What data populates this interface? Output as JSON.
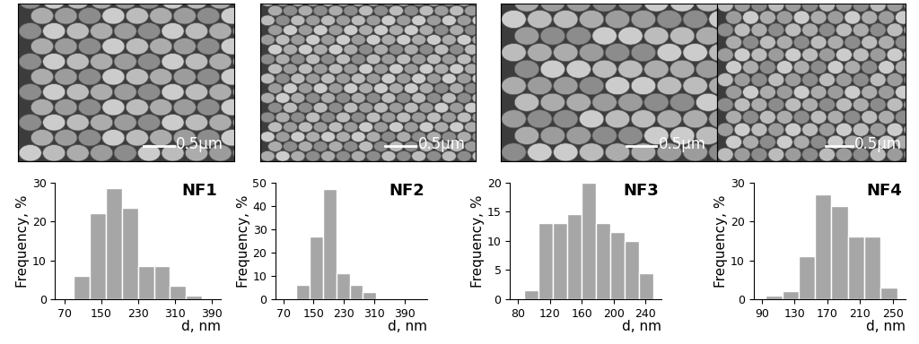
{
  "images": [
    {
      "scale_bar": "0.5μm"
    },
    {
      "scale_bar": "0.5μm"
    },
    {
      "scale_bar": "0.5μm"
    },
    {
      "scale_bar": "0.5μm"
    }
  ],
  "chart_data": [
    {
      "type": "histogram",
      "title": "NF1",
      "x_label": "d, nm",
      "y_label": "Frequency, %",
      "bins": [
        90,
        125,
        160,
        195,
        230,
        265,
        300,
        335,
        370
      ],
      "values": [
        6,
        22,
        28.5,
        23.5,
        8.5,
        8.5,
        3.5,
        1
      ],
      "color": "#a6a6a6",
      "xlim": [
        50,
        410
      ],
      "xticks": [
        70,
        150,
        230,
        310,
        390
      ],
      "ylim": [
        0,
        30
      ],
      "yticks": [
        0,
        10,
        20,
        30
      ]
    },
    {
      "type": "histogram",
      "title": "NF2",
      "x_label": "d, nm",
      "y_label": "Frequency, %",
      "bins": [
        105,
        140,
        175,
        210,
        245,
        280,
        315
      ],
      "values": [
        6,
        27,
        47,
        11,
        6,
        3
      ],
      "color": "#a6a6a6",
      "xlim": [
        50,
        450
      ],
      "xticks": [
        70,
        150,
        230,
        310,
        390
      ],
      "ylim": [
        0,
        50
      ],
      "yticks": [
        0,
        10,
        20,
        30,
        40,
        50
      ]
    },
    {
      "type": "histogram",
      "title": "NF3",
      "x_label": "d, nm",
      "y_label": "Frequency, %",
      "bins": [
        88,
        106,
        124,
        142,
        160,
        178,
        196,
        214,
        232,
        250
      ],
      "values": [
        1.5,
        13,
        13,
        14.5,
        20,
        13,
        11.5,
        10,
        4.5
      ],
      "color": "#a6a6a6",
      "xlim": [
        70,
        260
      ],
      "xticks": [
        80,
        120,
        160,
        200,
        240
      ],
      "ylim": [
        0,
        20
      ],
      "yticks": [
        0,
        5,
        10,
        15,
        20
      ]
    },
    {
      "type": "histogram",
      "title": "NF4",
      "x_label": "d, nm",
      "y_label": "Frequency, %",
      "bins": [
        95,
        115,
        135,
        155,
        175,
        195,
        215,
        235,
        255
      ],
      "values": [
        1,
        2,
        11,
        27,
        24,
        16,
        16,
        3
      ],
      "color": "#a6a6a6",
      "xlim": [
        80,
        265
      ],
      "xticks": [
        90,
        130,
        170,
        210,
        250
      ],
      "ylim": [
        0,
        30
      ],
      "yticks": [
        0,
        10,
        20,
        30
      ]
    }
  ]
}
